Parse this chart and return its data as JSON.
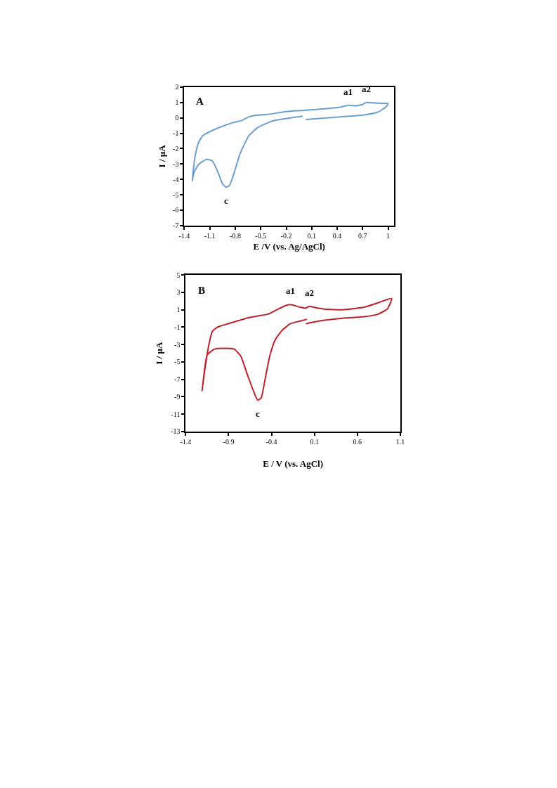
{
  "chart_data": [
    {
      "type": "line",
      "title": "A",
      "xlabel": "E /V (vs. Ag/AgCl)",
      "ylabel": "I / µA",
      "xlim": [
        -1.4,
        1.07
      ],
      "xticks": [
        -1.4,
        -1.1,
        -0.8,
        -0.5,
        -0.2,
        0.1,
        0.4,
        0.7,
        1
      ],
      "ylim": [
        -7,
        2
      ],
      "yticks": [
        -7,
        -6,
        -5,
        -4,
        -3,
        -2,
        -1,
        0,
        1,
        2
      ],
      "marker": "none",
      "line_style": "solid",
      "series": [
        {
          "color": "#6a9fd0",
          "x": [
            0.03,
            0.716,
            0.878,
            0.973,
            1.0,
            0.932,
            0.824,
            0.743,
            0.689,
            0.608,
            0.526,
            0.445,
            0.175,
            -0.204,
            -0.42,
            -0.583,
            -0.637,
            -0.718,
            -0.826,
            -1.016,
            -1.178,
            -1.232,
            -1.273,
            -1.308,
            -1.286,
            -1.232,
            -1.138,
            -1.07,
            -1.002,
            -0.948,
            -0.908,
            -0.867,
            -0.813,
            -0.745,
            -0.637,
            -0.529,
            -0.366,
            -0.204,
            -0.007
          ],
          "values": [
            -0.11,
            0.19,
            0.37,
            0.7,
            0.93,
            0.94,
            0.97,
            1.0,
            0.85,
            0.78,
            0.82,
            0.7,
            0.55,
            0.4,
            0.22,
            0.14,
            0.07,
            -0.16,
            -0.31,
            -0.69,
            -1.14,
            -1.6,
            -2.5,
            -4.12,
            -3.56,
            -3.03,
            -2.7,
            -2.8,
            -3.56,
            -4.31,
            -4.5,
            -4.39,
            -3.56,
            -2.35,
            -1.14,
            -0.61,
            -0.21,
            -0.05,
            0.11
          ]
        }
      ],
      "annotations": [
        {
          "text": "a1",
          "x": 0.526,
          "y": 0.82
        },
        {
          "text": "a2",
          "x": 0.743,
          "y": 1.0
        },
        {
          "text": "c",
          "x": -0.908,
          "y": -4.5
        }
      ]
    },
    {
      "type": "line",
      "title": "B",
      "xlabel": "E / V (vs. AgCl)",
      "ylabel": "I / µA",
      "xlim": [
        -1.4,
        1.1
      ],
      "xticks": [
        -1.4,
        -0.9,
        -0.4,
        0.1,
        0.6,
        1.1
      ],
      "ylim": [
        -13,
        5
      ],
      "yticks": [
        -13,
        -11,
        -9,
        -7,
        -5,
        -3,
        -1,
        1,
        3,
        5
      ],
      "marker": "none",
      "line_style": "solid",
      "series": [
        {
          "color": "#c0202a",
          "x": [
            0.0,
            0.15,
            0.41,
            0.68,
            0.84,
            0.95,
            1.0,
            0.84,
            0.68,
            0.41,
            0.2,
            0.09,
            0.04,
            0.0,
            -0.07,
            -0.18,
            -0.23,
            -0.34,
            -0.44,
            -0.55,
            -0.66,
            -0.87,
            -1.03,
            -1.09,
            -1.13,
            -1.17,
            -1.21,
            -1.19,
            -1.15,
            -1.06,
            -0.84,
            -0.76,
            -0.68,
            -0.6,
            -0.56,
            -0.52,
            -0.47,
            -0.42,
            -0.36,
            -0.28,
            -0.18,
            -0.07,
            0.01
          ],
          "values": [
            -0.6,
            -0.3,
            0.0,
            0.2,
            0.5,
            1.1,
            2.3,
            1.8,
            1.3,
            1.0,
            1.1,
            1.3,
            1.4,
            1.2,
            1.3,
            1.6,
            1.5,
            1.0,
            0.5,
            0.3,
            0.1,
            -0.5,
            -1.0,
            -1.5,
            -3.0,
            -5.4,
            -8.3,
            -6.7,
            -4.2,
            -3.5,
            -3.5,
            -4.3,
            -6.5,
            -8.6,
            -9.4,
            -9.1,
            -6.7,
            -4.3,
            -2.5,
            -1.4,
            -0.6,
            -0.3,
            -0.1
          ]
        }
      ],
      "annotations": [
        {
          "text": "a1",
          "x": -0.18,
          "y": 1.6
        },
        {
          "text": "a2",
          "x": 0.04,
          "y": 1.4
        },
        {
          "text": "c",
          "x": -0.56,
          "y": -9.4
        }
      ]
    }
  ]
}
